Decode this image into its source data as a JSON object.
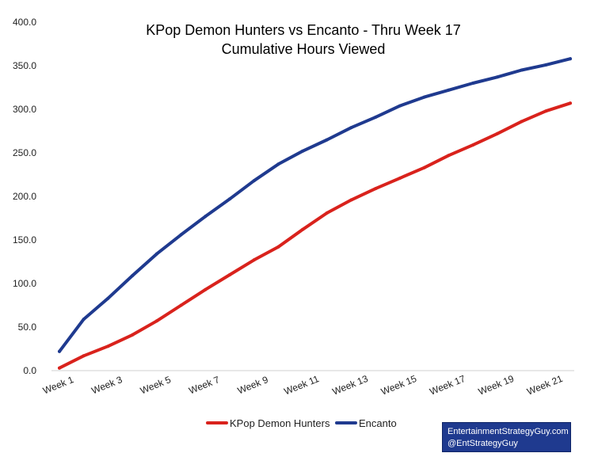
{
  "chart_data": {
    "type": "line",
    "title": "KPop Demon Hunters vs Encanto - Thru Week 17",
    "subtitle": "Cumulative Hours Viewed",
    "xlabel": "",
    "ylabel": "",
    "ylim": [
      0,
      400
    ],
    "y_ticks": [
      "0.0",
      "50.0",
      "100.0",
      "150.0",
      "200.0",
      "250.0",
      "300.0",
      "350.0",
      "400.0"
    ],
    "x": [
      1,
      2,
      3,
      4,
      5,
      6,
      7,
      8,
      9,
      10,
      11,
      12,
      13,
      14,
      15,
      16,
      17,
      18,
      19,
      20,
      21,
      22
    ],
    "x_tick_labels": [
      "Week 1",
      "Week 3",
      "Week 5",
      "Week 7",
      "Week 9",
      "Week 11",
      "Week 13",
      "Week 15",
      "Week 17",
      "Week 19",
      "Week 21"
    ],
    "grid": false,
    "legend_position": "bottom",
    "series": [
      {
        "name": "KPop Demon Hunters",
        "color": "#d9221c",
        "values": [
          3,
          17,
          28,
          41,
          57,
          75,
          93,
          110,
          127,
          142,
          162,
          181,
          196,
          209,
          221,
          233,
          247,
          259,
          272,
          286,
          298,
          307
        ]
      },
      {
        "name": "Encanto",
        "color": "#1f3a8f",
        "values": [
          22,
          59,
          83,
          109,
          134,
          156,
          177,
          197,
          218,
          237,
          252,
          265,
          279,
          291,
          304,
          314,
          322,
          330,
          337,
          345,
          351,
          358
        ]
      }
    ]
  },
  "credit": {
    "line1": "EntertainmentStrategyGuy.com",
    "line2": "@EntStrategyGuy"
  }
}
